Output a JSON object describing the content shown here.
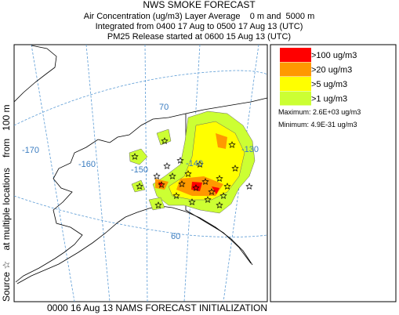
{
  "header": {
    "title": "NWS SMOKE FORECAST",
    "lines": [
      "Air Concentration (ug/m3) Layer Average    0 m and  5000 m",
      "Integrated from 0400 17 Aug to 0500 17 Aug 13 (UTC)",
      "PM25 Release started at 0600 15 Aug 13 (UTC)"
    ]
  },
  "side_label": "Source ☆    at multiple locations    from   100 m",
  "legend": {
    "items": [
      {
        "label": ">100 ug/m3",
        "color": "#ff0000"
      },
      {
        "label": ">20 ug/m3",
        "color": "#ff9900"
      },
      {
        "label": ">5 ug/m3",
        "color": "#ffff00"
      },
      {
        "label": ">1 ug/m3",
        "color": "#ccff33"
      }
    ],
    "maximum": "Maximum: 2.6E+03 ug/m3",
    "minimum": "Minimum: 4.9E-31 ug/m3"
  },
  "footer": "0000 16 Aug 13 NAMS FORECAST INITIALIZATION",
  "map": {
    "longitude_labels": [
      "-170",
      "-160",
      "-150",
      "-140",
      "-130"
    ],
    "latitude_labels": [
      "70",
      "60"
    ]
  }
}
